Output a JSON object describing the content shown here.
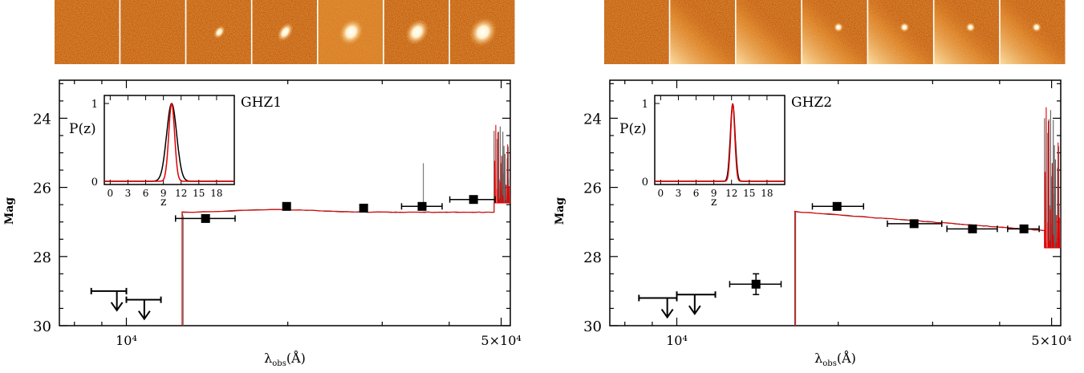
{
  "chart_data": [
    {
      "type": "scatter",
      "title": "GHZ1",
      "xlabel": "λobs(Å)",
      "ylabel": "Mag",
      "xscale": "log",
      "xlim": [
        7500,
        52000
      ],
      "ylim": [
        30,
        22.9
      ],
      "x_tick_labels": [
        {
          "x": 10000,
          "label": "10⁴"
        },
        {
          "x": 50000,
          "label": "5×10⁴"
        }
      ],
      "y_ticks": [
        24,
        26,
        28,
        30
      ],
      "stamp_colors": [
        "#c85a10",
        "#c85a10",
        "#c85a10",
        "#c85a10",
        "#e07a1a",
        "#c85a10",
        "#c85a10"
      ],
      "photometry": [
        {
          "x": 14050,
          "xerr_lo": 1700,
          "xerr_hi": 1900,
          "y": 26.9
        },
        {
          "x": 19900,
          "y": 26.55
        },
        {
          "x": 27700,
          "y": 26.6
        },
        {
          "x": 35600,
          "xerr_lo": 3000,
          "xerr_hi": 3200,
          "y": 26.55
        },
        {
          "x": 44400,
          "xerr_lo": 4300,
          "xerr_hi": 4300,
          "y": 26.35
        }
      ],
      "upper_limits": [
        {
          "x": 9600,
          "xlo": 8600,
          "xhi": 10000,
          "y": 29.0
        },
        {
          "x": 10800,
          "xlo": 10000,
          "xhi": 11600,
          "y": 29.25
        }
      ],
      "inset": {
        "ylabel": "P(z)",
        "xlabel": "z",
        "x_ticks": [
          0,
          3,
          6,
          9,
          12,
          15,
          18
        ],
        "y_ticks": [
          0,
          1
        ],
        "xlim": [
          -1,
          21
        ],
        "peak_z": 10.4,
        "width_red": 0.5,
        "width_black": 0.85
      }
    },
    {
      "type": "scatter",
      "title": "GHZ2",
      "xlabel": "λobs(Å)",
      "ylabel": "Mag",
      "xscale": "log",
      "xlim": [
        7500,
        52000
      ],
      "ylim": [
        30,
        22.9
      ],
      "x_tick_labels": [
        {
          "x": 10000,
          "label": "10⁴"
        },
        {
          "x": 50000,
          "label": "5×10⁴"
        }
      ],
      "y_ticks": [
        24,
        26,
        28,
        30
      ],
      "photometry": [
        {
          "x": 14050,
          "xerr_lo": 1500,
          "xerr_hi": 1600,
          "y": 28.8,
          "yerr": 0.3
        },
        {
          "x": 19900,
          "xerr_lo": 2000,
          "xerr_hi": 2400,
          "y": 26.55
        },
        {
          "x": 27700,
          "xerr_lo": 3000,
          "xerr_hi": 3500,
          "y": 27.05
        },
        {
          "x": 35600,
          "xerr_lo": 3700,
          "xerr_hi": 4000,
          "y": 27.2
        },
        {
          "x": 44400,
          "xerr_lo": 3000,
          "xerr_hi": 3000,
          "y": 27.2
        }
      ],
      "upper_limits": [
        {
          "x": 9600,
          "xlo": 8500,
          "xhi": 10000,
          "y": 29.2
        },
        {
          "x": 10800,
          "xlo": 10000,
          "xhi": 11800,
          "y": 29.1
        }
      ],
      "inset": {
        "ylabel": "P(z)",
        "xlabel": "z",
        "x_ticks": [
          0,
          3,
          6,
          9,
          12,
          15,
          18
        ],
        "y_ticks": [
          0,
          1
        ],
        "xlim": [
          -1,
          21
        ],
        "peak_z": 12.2,
        "width_red": 0.35,
        "width_black": 0.4
      }
    }
  ],
  "colors": {
    "model_red": "#e00000",
    "model_gray": "#606060",
    "point": "#000000",
    "stamp_dark": "#b0460a",
    "stamp_light": "#f6c070"
  }
}
